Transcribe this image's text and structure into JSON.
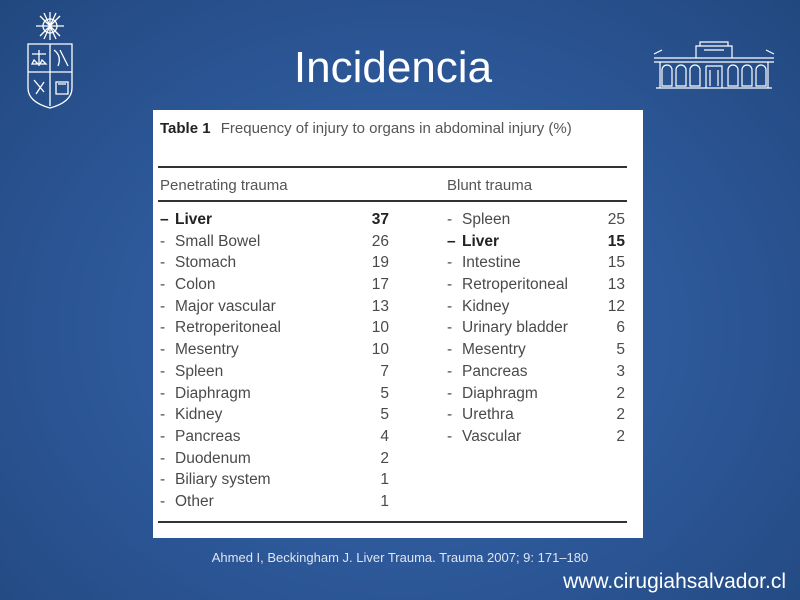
{
  "slide": {
    "title": "Incidencia",
    "citation": "Ahmed I,  Beckingham J. Liver Trauma. Trauma 2007; 9: 171–180",
    "website": "www.cirugiahsalvador.cl",
    "left_logo_icon": "university-crest-icon",
    "right_logo_icon": "hospital-building-icon"
  },
  "table": {
    "number": "Table 1",
    "caption": "Frequency of injury to organs in abdominal injury (%)",
    "penetrating": {
      "header": "Penetrating trauma",
      "rows": [
        {
          "name": "Liver",
          "value": "37",
          "bold": true
        },
        {
          "name": "Small Bowel",
          "value": "26"
        },
        {
          "name": "Stomach",
          "value": "19"
        },
        {
          "name": "Colon",
          "value": "17"
        },
        {
          "name": "Major vascular",
          "value": "13"
        },
        {
          "name": "Retroperitoneal",
          "value": "10"
        },
        {
          "name": "Mesentry",
          "value": "10"
        },
        {
          "name": "Spleen",
          "value": "7"
        },
        {
          "name": "Diaphragm",
          "value": "5"
        },
        {
          "name": "Kidney",
          "value": "5"
        },
        {
          "name": "Pancreas",
          "value": "4"
        },
        {
          "name": "Duodenum",
          "value": "2"
        },
        {
          "name": "Biliary system",
          "value": "1"
        },
        {
          "name": "Other",
          "value": "1"
        }
      ]
    },
    "blunt": {
      "header": "Blunt trauma",
      "rows": [
        {
          "name": "Spleen",
          "value": "25"
        },
        {
          "name": "Liver",
          "value": "15",
          "bold": true
        },
        {
          "name": "Intestine",
          "value": "15"
        },
        {
          "name": "Retroperitoneal",
          "value": "13"
        },
        {
          "name": "Kidney",
          "value": "12"
        },
        {
          "name": "Urinary bladder",
          "value": "6"
        },
        {
          "name": "Mesentry",
          "value": "5"
        },
        {
          "name": "Pancreas",
          "value": "3"
        },
        {
          "name": "Diaphragm",
          "value": "2"
        },
        {
          "name": "Urethra",
          "value": "2"
        },
        {
          "name": "Vascular",
          "value": "2"
        }
      ]
    }
  }
}
